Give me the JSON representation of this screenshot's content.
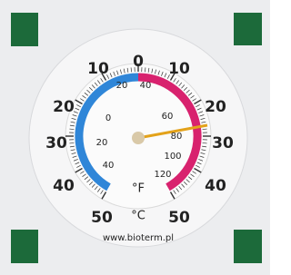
{
  "dial": {
    "celsius_top": "0",
    "celsius_left": [
      "10",
      "20",
      "30",
      "40",
      "50"
    ],
    "celsius_right": [
      "10",
      "20",
      "30",
      "40",
      "50"
    ],
    "fahrenheit_left": [
      "20",
      "0",
      "20",
      "40"
    ],
    "fahrenheit_right": [
      "40",
      "60",
      "80",
      "100",
      "120"
    ],
    "unit_f": "°F",
    "unit_c": "°C",
    "url": "www.bioterm.pl"
  }
}
